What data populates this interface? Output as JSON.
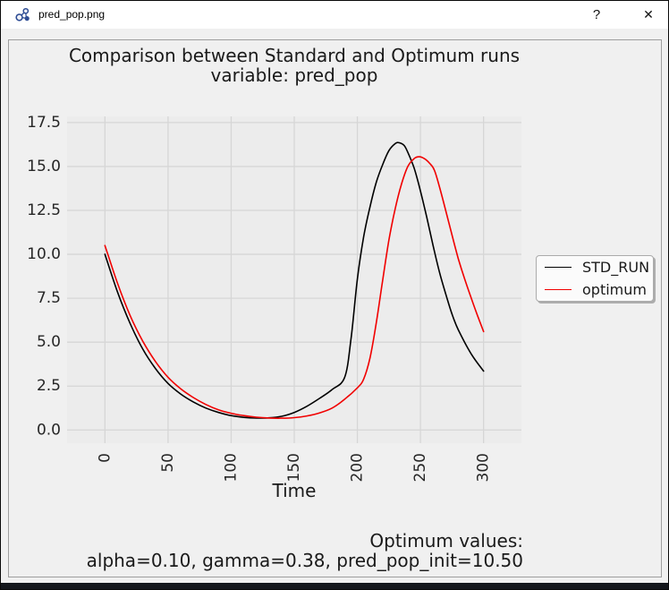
{
  "window": {
    "title": "pred_pop.png",
    "help_label": "?",
    "close_label": "✕"
  },
  "icons": {
    "app": "molecule-icon",
    "help": "question-mark-icon",
    "close": "close-x-icon"
  },
  "colors": {
    "titlebar_bg": "#ffffff",
    "window_bg": "#f0f0f0",
    "figure_bg": "#f0f0f0",
    "plot_bg": "#ececec",
    "grid": "#d6d6d6",
    "frame_border": "#9e9e9e",
    "std_run_line": "#000000",
    "optimum_line": "#f10000",
    "app_icon_blue": "#2e4d94",
    "text": "#1a1a1a"
  },
  "chart_data": {
    "type": "line",
    "title_line1": "Comparison between Standard and Optimum runs",
    "title_line2": "variable: pred_pop",
    "xlabel": "Time",
    "ylabel": "",
    "xlim": [
      -30,
      330
    ],
    "ylim": [
      -0.75,
      17.85
    ],
    "xticks": [
      0,
      50,
      100,
      150,
      200,
      250,
      300
    ],
    "yticks": [
      0,
      2.5,
      5,
      7.5,
      10,
      12.5,
      15,
      17.5
    ],
    "ytick_labels": [
      "0.0",
      "2.5",
      "5.0",
      "7.5",
      "10.0",
      "12.5",
      "15.0",
      "17.5"
    ],
    "grid": true,
    "legend_position": "center-right outside axes",
    "series": [
      {
        "name": "STD_RUN",
        "color": "#000000",
        "x": [
          0,
          10,
          20,
          30,
          40,
          50,
          60,
          70,
          80,
          90,
          100,
          110,
          120,
          130,
          140,
          150,
          160,
          170,
          180,
          190,
          195,
          200,
          205,
          210,
          215,
          220,
          225,
          230,
          233,
          237,
          240,
          245,
          250,
          255,
          260,
          265,
          270,
          275,
          280,
          290,
          300
        ],
        "y": [
          10.0,
          7.85,
          6.05,
          4.6,
          3.5,
          2.65,
          2.05,
          1.6,
          1.25,
          1.0,
          0.82,
          0.72,
          0.68,
          0.69,
          0.78,
          1.0,
          1.35,
          1.8,
          2.3,
          3.0,
          5.2,
          8.6,
          11.0,
          12.7,
          14.1,
          15.1,
          15.9,
          16.3,
          16.35,
          16.2,
          15.8,
          14.9,
          13.6,
          12.1,
          10.5,
          9.0,
          7.75,
          6.6,
          5.7,
          4.35,
          3.35
        ]
      },
      {
        "name": "optimum",
        "color": "#f10000",
        "x": [
          0,
          10,
          20,
          30,
          40,
          50,
          60,
          70,
          80,
          90,
          100,
          110,
          120,
          130,
          140,
          150,
          160,
          170,
          180,
          190,
          200,
          205,
          210,
          215,
          220,
          225,
          230,
          235,
          240,
          245,
          249,
          253,
          257,
          261,
          265,
          270,
          275,
          280,
          285,
          290,
          295,
          300
        ],
        "y": [
          10.5,
          8.35,
          6.5,
          5.05,
          3.9,
          3.0,
          2.35,
          1.85,
          1.45,
          1.15,
          0.95,
          0.82,
          0.73,
          0.68,
          0.67,
          0.7,
          0.8,
          0.97,
          1.25,
          1.75,
          2.4,
          2.9,
          4.1,
          6.1,
          8.5,
          10.8,
          12.6,
          14.0,
          15.0,
          15.45,
          15.55,
          15.45,
          15.2,
          14.8,
          13.85,
          12.5,
          11.1,
          9.75,
          8.6,
          7.55,
          6.55,
          5.6
        ]
      }
    ],
    "annotation_line1": "Optimum values:",
    "annotation_line2": "alpha=0.10, gamma=0.38, pred_pop_init=10.50"
  }
}
